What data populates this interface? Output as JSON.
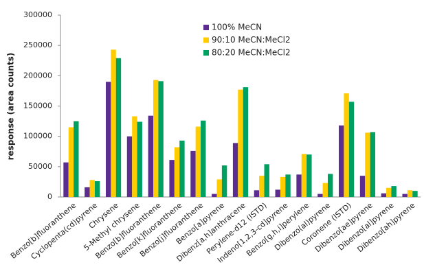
{
  "chart_data": {
    "type": "bar",
    "y_label": "response (area counts)",
    "categories": [
      "Benzo[b]fluoranthene",
      "Cyclopenta(cd)pyrene",
      "Chrysene",
      "5-Methyl chrysene",
      "Benzo[b]fluoranthene",
      "Benzo[k]fluoranthene",
      "Benzo[j]fluoranthene",
      "Benzo[a]pyrene",
      "Dibenz[a,h]anthracene",
      "Perylene-d12 (ISTD)",
      "Indeno[1,2,3-cd]pyrene",
      "Benzo[g,h,i]perylene",
      "Dibenzo(al)pyrene",
      "Coronene (ISTD)",
      "Dibenzo[ae]pyrene",
      "Dibenzo[al]pyrene",
      "Dibenzo[ah]pyrene"
    ],
    "series": [
      {
        "name": "100% MeCN",
        "color": "#5b2d90",
        "values": [
          57000,
          16000,
          190000,
          100000,
          134000,
          61000,
          76000,
          5000,
          89000,
          11000,
          12000,
          37000,
          5000,
          118000,
          35000,
          6000,
          5000
        ]
      },
      {
        "name": "90:10 MeCN:MeCl2",
        "color": "#ffcc00",
        "values": [
          115000,
          28000,
          243000,
          133000,
          193000,
          82000,
          116000,
          29000,
          177000,
          35000,
          33000,
          71000,
          23000,
          171000,
          106000,
          15000,
          11000
        ]
      },
      {
        "name": "80:20 MeCN:MeCl2",
        "color": "#00a060",
        "values": [
          125000,
          26000,
          229000,
          124000,
          191000,
          93000,
          126000,
          52000,
          181000,
          54000,
          37000,
          70000,
          38000,
          157000,
          107000,
          18000,
          10000
        ]
      }
    ],
    "ylim": [
      0,
      300000
    ],
    "yticks": [
      0,
      50000,
      100000,
      150000,
      200000,
      250000,
      300000
    ],
    "grid": false
  }
}
